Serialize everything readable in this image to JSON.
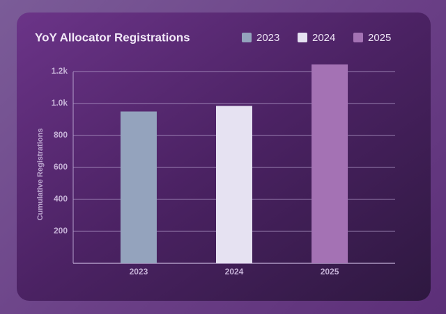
{
  "chart_data": {
    "type": "bar",
    "title": "YoY Allocator Registrations",
    "y_label": "Cumulative Registrations",
    "categories": [
      "2023",
      "2024",
      "2025"
    ],
    "values": [
      950,
      985,
      1245
    ],
    "colors": [
      "#94a3bd",
      "#e6e2f2",
      "#a472b4"
    ],
    "ylim": [
      0,
      1250
    ],
    "yticks": [
      200,
      400,
      600,
      800,
      {
        "value": 1000,
        "label": "1.0k"
      },
      {
        "value": 1200,
        "label": "1.2k"
      }
    ],
    "grid": true,
    "legend": "top-right"
  }
}
